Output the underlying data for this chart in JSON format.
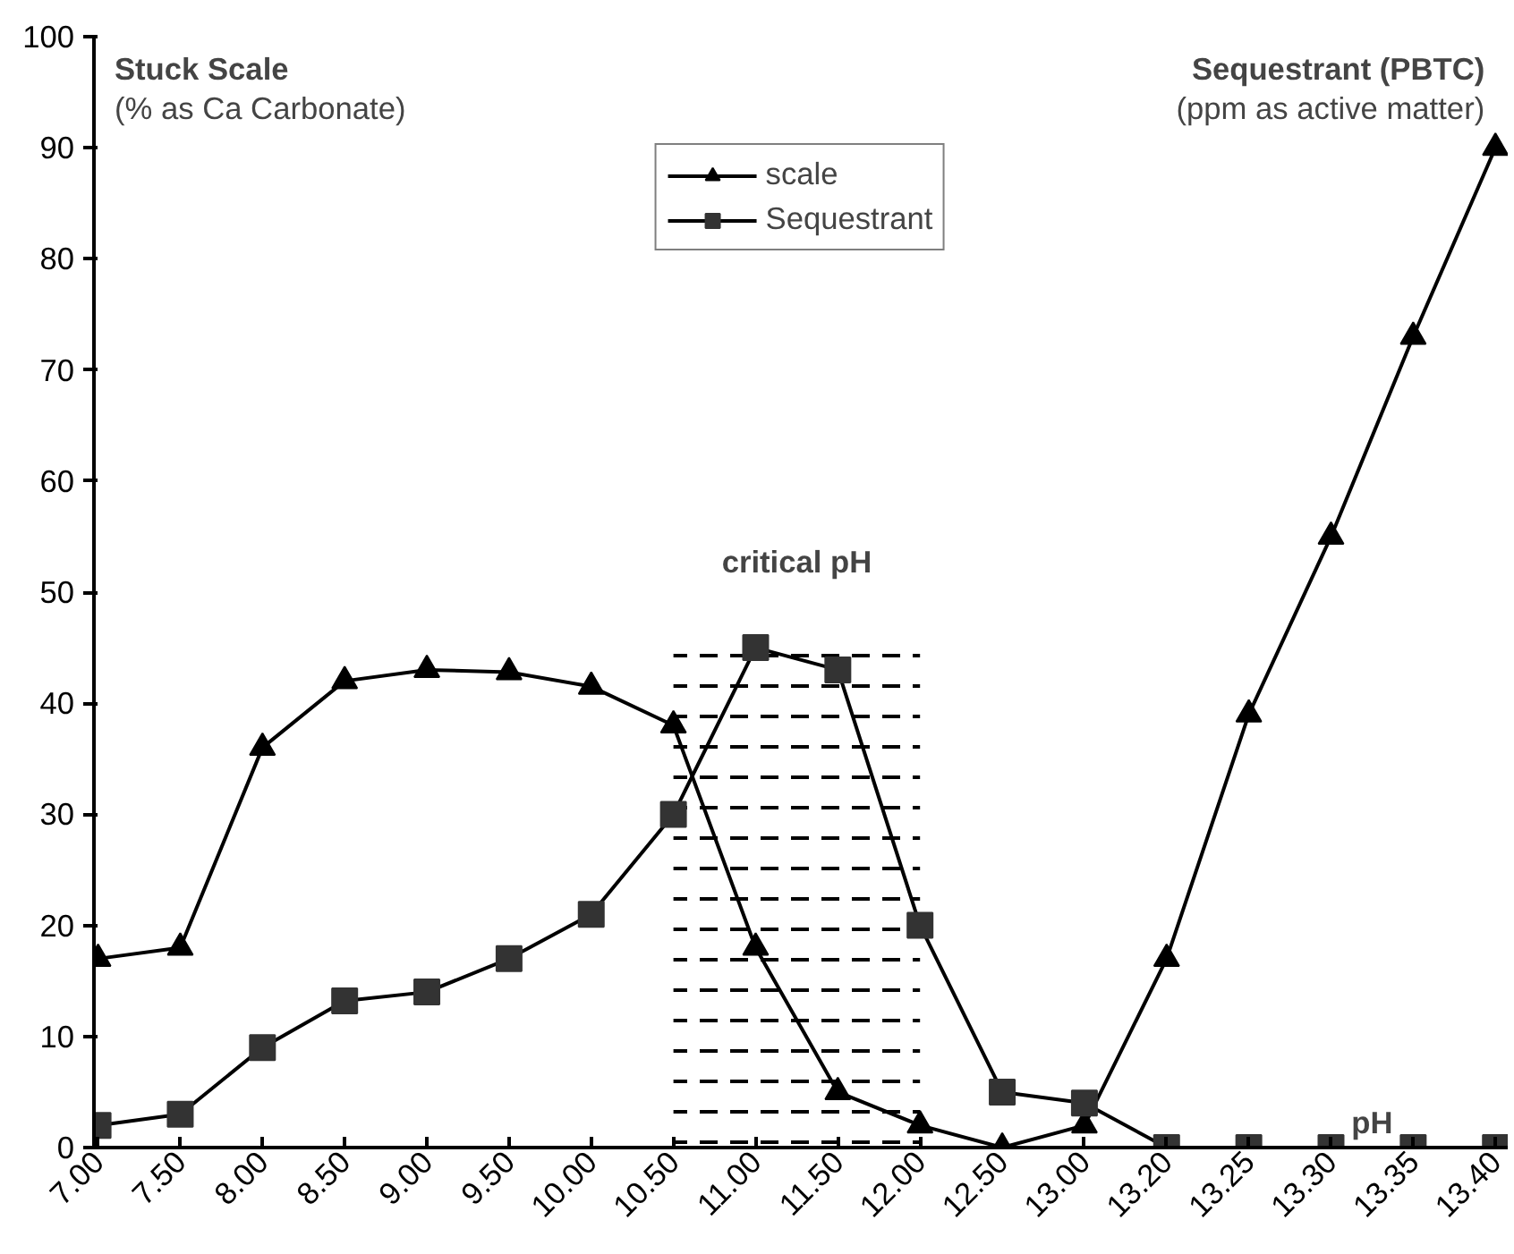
{
  "chart_data": {
    "type": "line",
    "xlabel": "pH",
    "categories": [
      "7.00",
      "7.50",
      "8.00",
      "8.50",
      "9.00",
      "9.50",
      "10.00",
      "10.50",
      "11.00",
      "11.50",
      "12.00",
      "12.50",
      "13.00",
      "13.20",
      "13.25",
      "13.30",
      "13.35",
      "13.40"
    ],
    "series": [
      {
        "name": "scale",
        "color": "#000000",
        "marker": "triangle",
        "values": [
          17,
          18,
          36,
          42,
          43,
          42.8,
          41.5,
          38,
          18,
          5,
          2,
          0,
          2,
          17,
          39,
          55,
          73,
          90
        ]
      },
      {
        "name": "Sequestrant",
        "color": "#333333",
        "marker": "square",
        "values": [
          2,
          3,
          9,
          13.2,
          14,
          17,
          21,
          30,
          45,
          43,
          20,
          5,
          4,
          0,
          0,
          0,
          0,
          0
        ]
      }
    ],
    "ylim": [
      0,
      100
    ],
    "yticks": [
      0,
      10,
      20,
      30,
      40,
      50,
      60,
      70,
      80,
      90,
      100
    ],
    "bands": [
      {
        "axis": "x",
        "from": "10.50",
        "to": "12.00",
        "label": "critical pH"
      }
    ],
    "annotations": [
      "Stuck Scale\n(% as Ca Carbonate)",
      "Sequestrant (PBTC)\n(ppm as active matter)"
    ],
    "legend": "top",
    "grid": false,
    "line_style": "solid"
  }
}
